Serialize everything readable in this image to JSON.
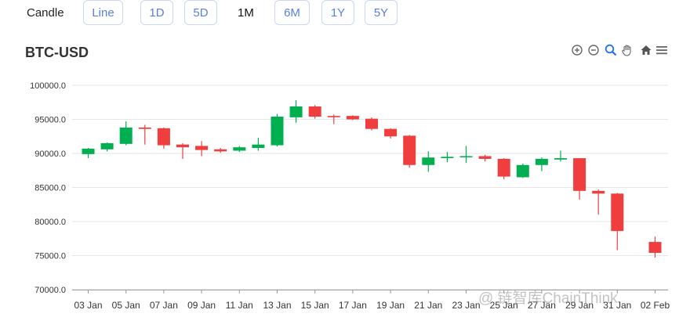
{
  "toolbar": {
    "chart_type_label": "Candle",
    "line_label": "Line",
    "range_1d": "1D",
    "range_5d": "5D",
    "range_1m": "1M",
    "range_6m": "6M",
    "range_1y": "1Y",
    "range_5y": "5Y"
  },
  "chart_tools": {
    "icons": [
      "zoom-in-icon",
      "zoom-out-icon",
      "zoom-icon",
      "pan-icon",
      "home-icon",
      "menu-icon"
    ]
  },
  "watermark": "@ 链智库ChainThink",
  "colors": {
    "up": "#00b050",
    "down": "#f03e3e",
    "accent": "#5b7fe0"
  },
  "chart_data": {
    "type": "candlestick",
    "title": "BTC-USD",
    "ylim": [
      70000,
      100000
    ],
    "y_ticks": [
      "100000.0",
      "95000.0",
      "90000.0",
      "85000.0",
      "80000.0",
      "75000.0",
      "70000.0"
    ],
    "x_tick_labels": [
      "03 Jan",
      "05 Jan",
      "07 Jan",
      "09 Jan",
      "11 Jan",
      "13 Jan",
      "15 Jan",
      "17 Jan",
      "19 Jan",
      "21 Jan",
      "23 Jan",
      "25 Jan",
      "27 Jan",
      "29 Jan",
      "31 Jan",
      "02 Feb"
    ],
    "grid": true,
    "candles": [
      {
        "date": "03 Jan",
        "open": 89900,
        "high": 90800,
        "low": 89300,
        "close": 90700
      },
      {
        "date": "04 Jan",
        "open": 90600,
        "high": 91600,
        "low": 90300,
        "close": 91500
      },
      {
        "date": "05 Jan",
        "open": 91400,
        "high": 94700,
        "low": 91200,
        "close": 93800
      },
      {
        "date": "06 Jan",
        "open": 93800,
        "high": 94200,
        "low": 91300,
        "close": 93600
      },
      {
        "date": "07 Jan",
        "open": 93700,
        "high": 93800,
        "low": 90700,
        "close": 91200
      },
      {
        "date": "08 Jan",
        "open": 91300,
        "high": 91500,
        "low": 89200,
        "close": 90900
      },
      {
        "date": "09 Jan",
        "open": 91100,
        "high": 91800,
        "low": 89600,
        "close": 90500
      },
      {
        "date": "10 Jan",
        "open": 90600,
        "high": 90800,
        "low": 90100,
        "close": 90300
      },
      {
        "date": "11 Jan",
        "open": 90400,
        "high": 91100,
        "low": 90200,
        "close": 90900
      },
      {
        "date": "12 Jan",
        "open": 90800,
        "high": 92300,
        "low": 90400,
        "close": 91300
      },
      {
        "date": "13 Jan",
        "open": 91200,
        "high": 95800,
        "low": 91000,
        "close": 95400
      },
      {
        "date": "14 Jan",
        "open": 95300,
        "high": 97800,
        "low": 94500,
        "close": 96900
      },
      {
        "date": "15 Jan",
        "open": 96900,
        "high": 97100,
        "low": 95100,
        "close": 95400
      },
      {
        "date": "16 Jan",
        "open": 95500,
        "high": 95700,
        "low": 94300,
        "close": 95400
      },
      {
        "date": "17 Jan",
        "open": 95500,
        "high": 95600,
        "low": 94900,
        "close": 95000
      },
      {
        "date": "18 Jan",
        "open": 95100,
        "high": 95300,
        "low": 93400,
        "close": 93600
      },
      {
        "date": "19 Jan",
        "open": 93600,
        "high": 93700,
        "low": 92200,
        "close": 92500
      },
      {
        "date": "20 Jan",
        "open": 92600,
        "high": 92700,
        "low": 87900,
        "close": 88300
      },
      {
        "date": "21 Jan",
        "open": 88300,
        "high": 90300,
        "low": 87300,
        "close": 89400
      },
      {
        "date": "22 Jan",
        "open": 89300,
        "high": 90200,
        "low": 88700,
        "close": 89500
      },
      {
        "date": "23 Jan",
        "open": 89500,
        "high": 91100,
        "low": 88600,
        "close": 89600
      },
      {
        "date": "24 Jan",
        "open": 89600,
        "high": 89800,
        "low": 88800,
        "close": 89200
      },
      {
        "date": "25 Jan",
        "open": 89200,
        "high": 89300,
        "low": 86200,
        "close": 86600
      },
      {
        "date": "26 Jan",
        "open": 86500,
        "high": 88500,
        "low": 86400,
        "close": 88300
      },
      {
        "date": "27 Jan",
        "open": 88300,
        "high": 89400,
        "low": 87400,
        "close": 89200
      },
      {
        "date": "28 Jan",
        "open": 89100,
        "high": 90400,
        "low": 88800,
        "close": 89300
      },
      {
        "date": "29 Jan",
        "open": 89300,
        "high": 89300,
        "low": 83200,
        "close": 84500
      },
      {
        "date": "30 Jan",
        "open": 84500,
        "high": 84700,
        "low": 81000,
        "close": 84100
      },
      {
        "date": "31 Jan",
        "open": 84100,
        "high": 84200,
        "low": 75800,
        "close": 78600
      },
      {
        "date": "01 Feb",
        "open": null,
        "high": null,
        "low": null,
        "close": null
      },
      {
        "date": "02 Feb",
        "open": 77000,
        "high": 77800,
        "low": 74700,
        "close": 75400
      }
    ]
  }
}
